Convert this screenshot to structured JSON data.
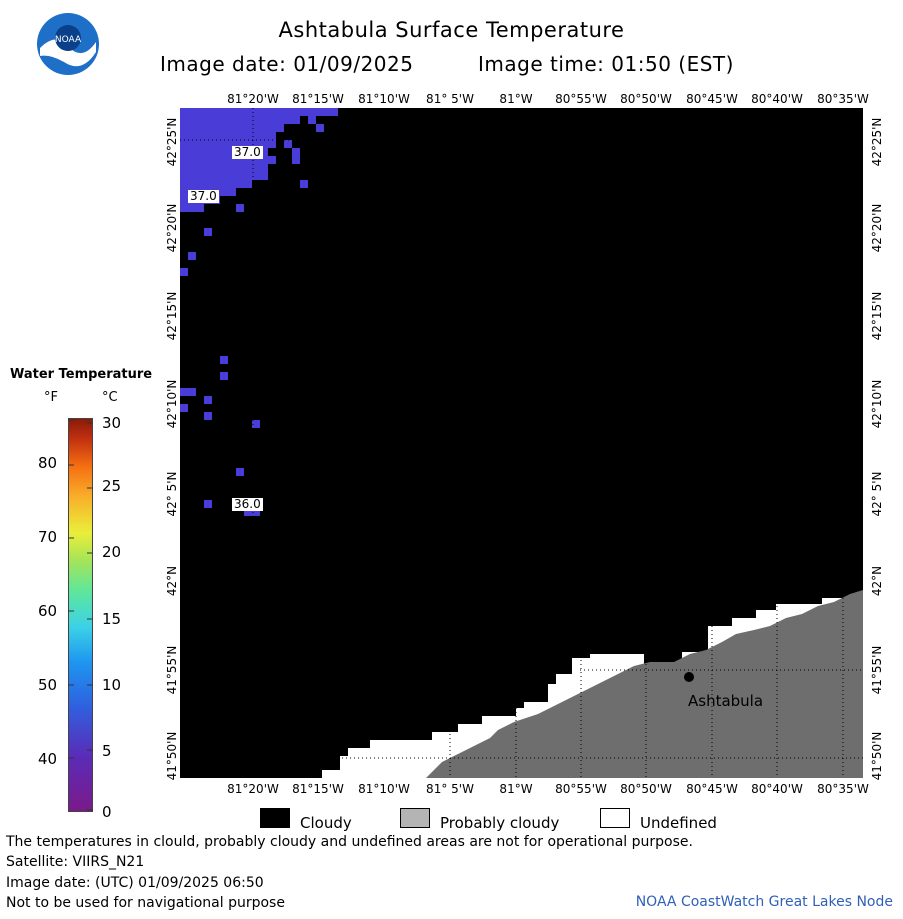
{
  "header": {
    "title": "Ashtabula Surface Temperature",
    "image_date": "Image date: 01/09/2025",
    "image_time": "Image time: 01:50 (EST)"
  },
  "map": {
    "lon_labels": [
      "81°20'W",
      "81°15'W",
      "81°10'W",
      "81° 5'W",
      "81°W",
      "80°55'W",
      "80°50'W",
      "80°45'W",
      "80°40'W",
      "80°35'W"
    ],
    "lat_labels": [
      "42°25'N",
      "42°20'N",
      "42°15'N",
      "42°10'N",
      "42° 5'N",
      "42°N",
      "41°55'N",
      "41°50'N"
    ],
    "temp_labels": [
      "37.0",
      "37.0",
      "36.0"
    ],
    "city": "Ashtabula"
  },
  "legend": {
    "title": "Water Temperature",
    "unit_f": "°F",
    "unit_c": "°C",
    "f_ticks": [
      "80",
      "70",
      "60",
      "50",
      "40"
    ],
    "c_ticks": [
      "30",
      "25",
      "20",
      "15",
      "10",
      "5",
      "0"
    ]
  },
  "key": {
    "cloudy": "Cloudy",
    "probably_cloudy": "Probably cloudy",
    "undefined": "Undefined"
  },
  "footer": {
    "note": "The temperatures in clould, probably cloudy and undefined areas are not for operational purpose.",
    "satellite": "Satellite: VIIRS_N21",
    "utc_date": "Image date: (UTC) 01/09/2025  06:50",
    "nav_warning": "Not to be used for navigational purpose",
    "credit": "NOAA CoastWatch Great Lakes Node"
  },
  "colors": {
    "cloudy": "#000000",
    "probably_cloudy": "#b4b4b4",
    "land": "#6e6e6e",
    "undefined": "#ffffff",
    "water_cold": "#4a3cd6",
    "credit_link": "#3060b8"
  }
}
